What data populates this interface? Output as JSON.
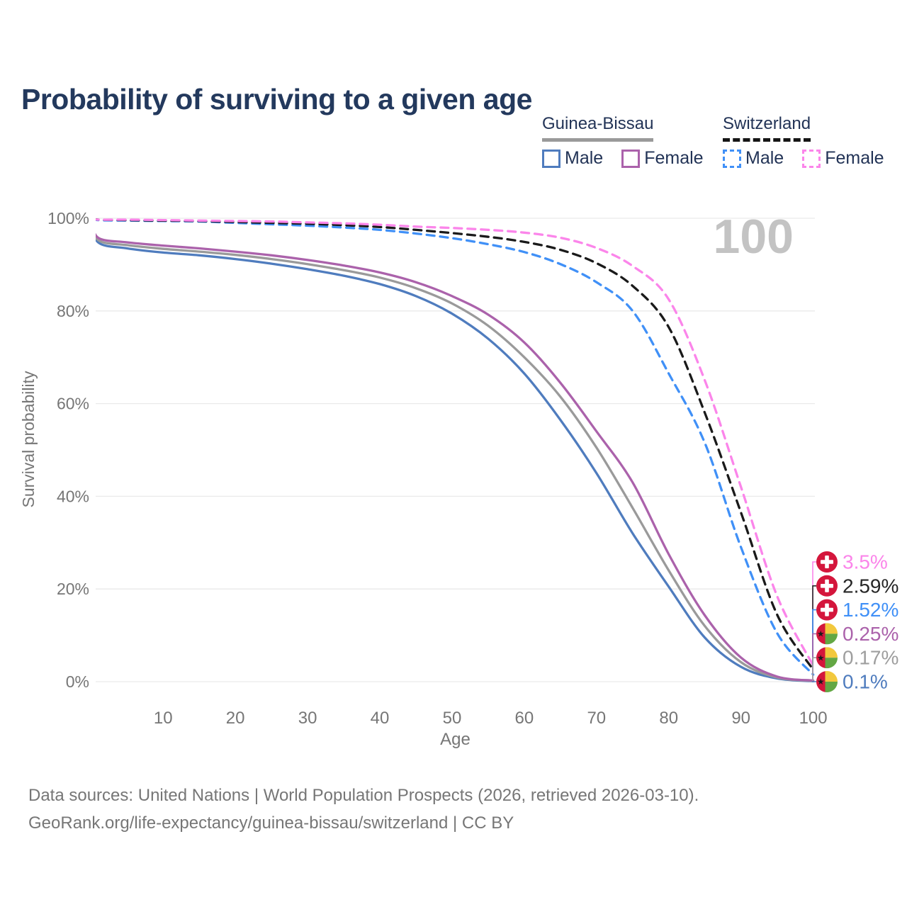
{
  "title": "Probability of surviving to a given age",
  "watermark": "100",
  "legend": {
    "groups": [
      {
        "label": "Guinea-Bissau",
        "line_style": "solid",
        "underline_color": "#9a9a9a",
        "items": [
          {
            "label": "Male",
            "color": "#4f7cbe",
            "dashed": false
          },
          {
            "label": "Female",
            "color": "#ab62ab",
            "dashed": false
          }
        ]
      },
      {
        "label": "Switzerland",
        "line_style": "dashed",
        "underline_color": "#151515",
        "items": [
          {
            "label": "Male",
            "color": "#4090f7",
            "dashed": true
          },
          {
            "label": "Female",
            "color": "#fb85ea",
            "dashed": true
          }
        ]
      }
    ]
  },
  "axes": {
    "x": {
      "label": "Age",
      "min": 0,
      "max": 100,
      "ticks": [
        10,
        20,
        30,
        40,
        50,
        60,
        70,
        80,
        90,
        100
      ]
    },
    "y": {
      "label": "Survival probability",
      "min": 0,
      "max": 100,
      "tick_values": [
        0,
        20,
        40,
        60,
        80,
        100
      ],
      "tick_labels": [
        "0%",
        "20%",
        "40%",
        "60%",
        "80%",
        "100%"
      ]
    }
  },
  "chart_data": {
    "type": "line",
    "title": "Probability of surviving to a given age",
    "xlabel": "Age",
    "ylabel": "Survival probability",
    "xlim": [
      0,
      100
    ],
    "ylim": [
      0,
      100
    ],
    "grid": "horizontal",
    "legend_position": "top-right",
    "x_values": [
      0,
      1,
      5,
      10,
      15,
      20,
      25,
      30,
      35,
      40,
      45,
      50,
      55,
      60,
      65,
      70,
      75,
      80,
      85,
      90,
      95,
      100
    ],
    "series": [
      {
        "name": "Guinea-Bissau Male",
        "color": "#4f7cbe",
        "dashed": false,
        "values": [
          100,
          94.8,
          93.5,
          92.6,
          92.0,
          91.2,
          90.2,
          89.0,
          87.6,
          85.8,
          83.2,
          79.4,
          74.0,
          66.5,
          56.5,
          45.0,
          32.0,
          20.5,
          9.5,
          3.2,
          0.7,
          0.1
        ]
      },
      {
        "name": "Guinea-Bissau Both sexes",
        "color": "#9a9a9a",
        "dashed": false,
        "values": [
          100,
          95.3,
          94.2,
          93.4,
          92.8,
          92.1,
          91.2,
          90.1,
          88.8,
          87.2,
          84.9,
          81.6,
          76.8,
          70.0,
          61.5,
          50.5,
          37.5,
          24.0,
          12.0,
          4.2,
          0.9,
          0.17
        ]
      },
      {
        "name": "Guinea-Bissau Female",
        "color": "#ab62ab",
        "dashed": false,
        "values": [
          100,
          95.8,
          94.8,
          94.1,
          93.5,
          92.8,
          92.0,
          91.0,
          89.8,
          88.3,
          86.2,
          83.2,
          79.2,
          73.2,
          64.5,
          54.0,
          43.0,
          27.5,
          14.3,
          5.2,
          1.1,
          0.25
        ]
      },
      {
        "name": "Switzerland Male",
        "color": "#4090f7",
        "dashed": true,
        "values": [
          100,
          99.6,
          99.5,
          99.4,
          99.3,
          99.0,
          98.7,
          98.4,
          98.0,
          97.5,
          96.7,
          95.7,
          94.4,
          92.7,
          90.1,
          86.2,
          80.0,
          66.5,
          51.5,
          29.0,
          10.5,
          1.52
        ]
      },
      {
        "name": "Switzerland Both sexes",
        "color": "#1a1a1a",
        "dashed": true,
        "values": [
          100,
          99.7,
          99.6,
          99.5,
          99.4,
          99.2,
          99.0,
          98.8,
          98.5,
          98.1,
          97.5,
          96.8,
          96.0,
          94.9,
          93.2,
          90.3,
          85.4,
          76.5,
          58.0,
          36.5,
          14.5,
          2.59
        ]
      },
      {
        "name": "Switzerland Female",
        "color": "#fb85ea",
        "dashed": true,
        "values": [
          100,
          99.7,
          99.7,
          99.6,
          99.5,
          99.4,
          99.3,
          99.1,
          98.9,
          98.6,
          98.2,
          97.9,
          97.5,
          96.9,
          95.8,
          93.6,
          89.7,
          82.5,
          65.0,
          42.0,
          18.5,
          3.5
        ]
      }
    ],
    "end_labels": [
      {
        "text": "3.5%",
        "color": "#fb85ea",
        "flag": "switzerland",
        "series": "Switzerland Female",
        "value": 3.5
      },
      {
        "text": "2.59%",
        "color": "#262626",
        "flag": "switzerland",
        "series": "Switzerland Both sexes",
        "value": 2.59
      },
      {
        "text": "1.52%",
        "color": "#4090f7",
        "flag": "switzerland",
        "series": "Switzerland Male",
        "value": 1.52
      },
      {
        "text": "0.25%",
        "color": "#ab62ab",
        "flag": "guinea-bissau",
        "series": "Guinea-Bissau Female",
        "value": 0.25
      },
      {
        "text": "0.17%",
        "color": "#9e9e9e",
        "flag": "guinea-bissau",
        "series": "Guinea-Bissau Both sexes",
        "value": 0.17
      },
      {
        "text": "0.1%",
        "color": "#4f7cbe",
        "flag": "guinea-bissau",
        "series": "Guinea-Bissau Male",
        "value": 0.1
      }
    ],
    "flags": {
      "switzerland": {
        "bg": "#d4163c",
        "cross": "#ffffff"
      },
      "guinea_bissau": {
        "red": "#d4163c",
        "yellow": "#f2c83d",
        "green": "#63a744",
        "star": "#1a1a1a"
      }
    }
  },
  "footer": {
    "line1": "Data sources: United Nations | World Population Prospects (2026, retrieved 2026-03-10).",
    "line2": "GeoRank.org/life-expectancy/guinea-bissau/switzerland | CC BY"
  }
}
